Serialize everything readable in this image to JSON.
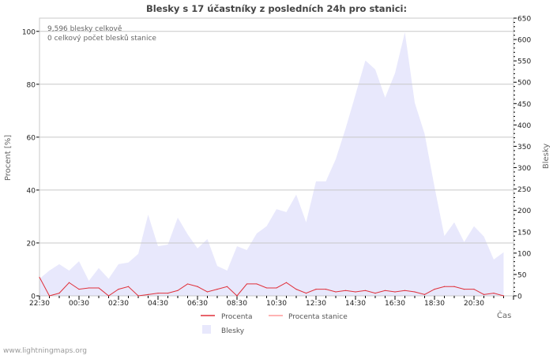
{
  "chart_data": {
    "type": "area",
    "title": "Blesky s 17 účastníky z posledních 24h pro stanici:",
    "annotations": [
      "9,596 blesky celkově",
      "0 celkový počet blesků stanice"
    ],
    "xlabel": "Čas",
    "ylabel_left": "Procent   [%]",
    "ylabel_right": "Blesky",
    "ylim_left": [
      0,
      105
    ],
    "ylim_right": [
      0,
      650
    ],
    "left_ticks": [
      0,
      20,
      40,
      60,
      80,
      100
    ],
    "right_ticks": [
      0,
      50,
      100,
      150,
      200,
      250,
      300,
      350,
      400,
      450,
      500,
      550,
      600,
      650
    ],
    "x_tick_labels": [
      "22:30",
      "00:30",
      "02:30",
      "04:30",
      "06:30",
      "08:30",
      "10:30",
      "12:30",
      "14:30",
      "16:30",
      "18:30",
      "20:30"
    ],
    "x_interval_minutes": 30,
    "grid": true,
    "legend_position": "bottom",
    "legend": [
      {
        "name": "Procenta",
        "color": "#e0303a"
      },
      {
        "name": "Procenta stanice",
        "color": "#ff9a9a"
      },
      {
        "name": "Blesky",
        "color": "#e8e8fc"
      }
    ],
    "series": [
      {
        "name": "Blesky",
        "axis": "right",
        "values": [
          40,
          59,
          74,
          59,
          81,
          35,
          65,
          40,
          74,
          78,
          98,
          190,
          116,
          120,
          183,
          144,
          111,
          133,
          70,
          59,
          116,
          107,
          146,
          163,
          203,
          196,
          237,
          172,
          268,
          268,
          320,
          392,
          471,
          551,
          530,
          464,
          521,
          617,
          452,
          379,
          255,
          140,
          172,
          126,
          163,
          139,
          85,
          102
        ]
      },
      {
        "name": "Procenta",
        "axis": "left",
        "values": [
          7,
          0,
          1,
          5,
          2.5,
          3,
          3,
          0,
          2.5,
          3.5,
          0,
          0.5,
          1,
          1,
          2,
          4.5,
          3.5,
          1.5,
          2.5,
          3.5,
          0,
          4.5,
          4.5,
          3,
          3,
          5,
          2.5,
          1,
          2.5,
          2.5,
          1.5,
          2,
          1.5,
          2,
          1,
          2,
          1.5,
          2,
          1.5,
          0.5,
          2.5,
          3.5,
          3.5,
          2.5,
          2.5,
          0.5,
          1,
          0
        ]
      },
      {
        "name": "Procenta stanice",
        "axis": "left",
        "values": []
      }
    ]
  },
  "footer": "www.lightningmaps.org"
}
